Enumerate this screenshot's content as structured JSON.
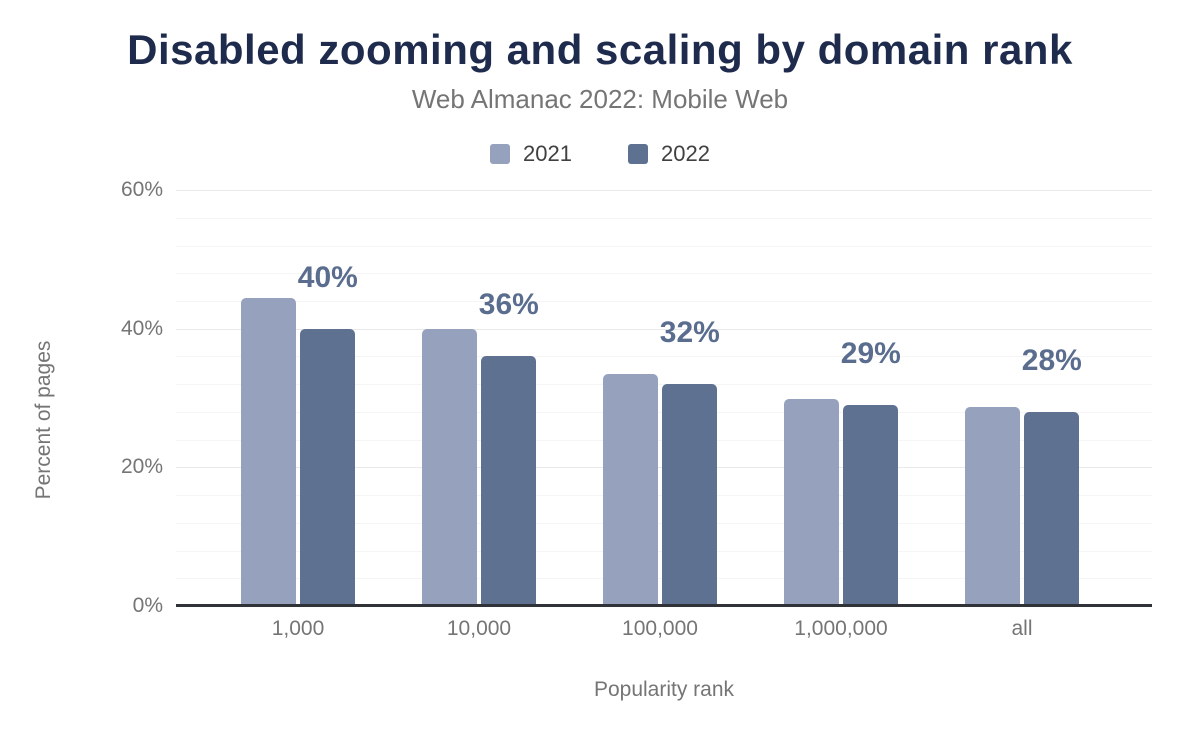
{
  "chart_data": {
    "type": "bar",
    "title": "Disabled zooming and scaling by domain rank",
    "subtitle": "Web Almanac 2022: Mobile Web",
    "categories": [
      "1,000",
      "10,000",
      "100,000",
      "1,000,000",
      "all"
    ],
    "series": [
      {
        "name": "2021",
        "color": "#96a2bd",
        "values": [
          44.4,
          40.0,
          33.4,
          29.9,
          28.7
        ]
      },
      {
        "name": "2022",
        "color": "#5e7191",
        "values": [
          40,
          36,
          32,
          29,
          28
        ],
        "labels": [
          "40%",
          "36%",
          "32%",
          "29%",
          "28%"
        ]
      }
    ],
    "xlabel": "Popularity rank",
    "ylabel": "Percent of pages",
    "ylim": [
      0,
      60
    ],
    "yticks": [
      0,
      20,
      40,
      60
    ],
    "ytick_labels": [
      "0%",
      "20%",
      "40%",
      "60%"
    ],
    "minor_grid_step": 4,
    "grid": true,
    "legend_position": "top"
  },
  "colors": {
    "background": "#ffffff",
    "title": "#1e2b4d",
    "subtitle": "#757575",
    "axis_text": "#757575",
    "legend_text": "#404040",
    "axis_line": "#2f3338",
    "grid_major": "#e9e9e9",
    "grid_minor": "#f5f5f5",
    "annotation": "#5a6d8f"
  }
}
